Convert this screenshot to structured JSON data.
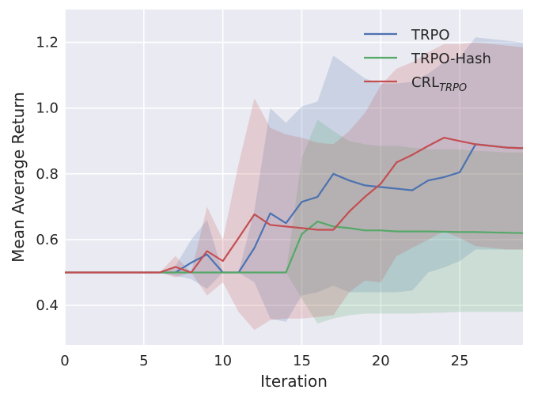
{
  "chart_data": {
    "type": "line",
    "xlabel": "Iteration",
    "ylabel": "Mean Average Return",
    "xlim": [
      0,
      29
    ],
    "ylim": [
      0.28,
      1.3
    ],
    "xticks": [
      0,
      5,
      10,
      15,
      20,
      25
    ],
    "yticks": [
      0.4,
      0.6,
      0.8,
      1.0,
      1.2
    ],
    "xtick_labels": [
      "0",
      "5",
      "10",
      "15",
      "20",
      "25"
    ],
    "ytick_labels": [
      "0.4",
      "0.6",
      "0.8",
      "1.0",
      "1.2"
    ],
    "grid": true,
    "background": "#eaeaf2",
    "legend_position": "top-right",
    "x": [
      0,
      1,
      2,
      3,
      4,
      5,
      6,
      7,
      8,
      9,
      10,
      11,
      12,
      13,
      14,
      15,
      16,
      17,
      18,
      19,
      20,
      21,
      22,
      23,
      24,
      25,
      26,
      27,
      28,
      29
    ],
    "series": [
      {
        "name": "TRPO",
        "color": "#4c72b0",
        "values": [
          0.5,
          0.5,
          0.5,
          0.5,
          0.5,
          0.5,
          0.5,
          0.5,
          0.53,
          0.555,
          0.5,
          0.5,
          0.575,
          0.68,
          0.65,
          0.715,
          0.73,
          0.8,
          0.78,
          0.765,
          0.76,
          0.755,
          0.75,
          0.78,
          0.79,
          0.805,
          0.89,
          0.885,
          0.88,
          0.878
        ],
        "band_upper": [
          0.5,
          0.5,
          0.5,
          0.5,
          0.5,
          0.5,
          0.5,
          0.52,
          0.6,
          0.66,
          0.5,
          0.5,
          0.69,
          1.0,
          0.955,
          1.005,
          1.02,
          1.16,
          1.125,
          1.09,
          1.075,
          1.075,
          1.08,
          1.105,
          1.14,
          1.155,
          1.215,
          1.21,
          1.205,
          1.2
        ],
        "band_lower": [
          0.5,
          0.5,
          0.5,
          0.5,
          0.5,
          0.5,
          0.5,
          0.49,
          0.48,
          0.45,
          0.5,
          0.5,
          0.47,
          0.36,
          0.35,
          0.43,
          0.44,
          0.46,
          0.44,
          0.44,
          0.44,
          0.44,
          0.445,
          0.5,
          0.515,
          0.535,
          0.57,
          0.57,
          0.57,
          0.57
        ]
      },
      {
        "name": "TRPO-Hash",
        "color": "#55a868",
        "values": [
          0.5,
          0.5,
          0.5,
          0.5,
          0.5,
          0.5,
          0.5,
          0.5,
          0.5,
          0.5,
          0.5,
          0.5,
          0.5,
          0.5,
          0.5,
          0.617,
          0.655,
          0.64,
          0.635,
          0.628,
          0.628,
          0.625,
          0.625,
          0.625,
          0.624,
          0.623,
          0.623,
          0.622,
          0.621,
          0.62
        ],
        "band_upper": [
          0.5,
          0.5,
          0.5,
          0.5,
          0.5,
          0.5,
          0.5,
          0.5,
          0.5,
          0.5,
          0.5,
          0.5,
          0.5,
          0.5,
          0.5,
          0.85,
          0.965,
          0.93,
          0.9,
          0.89,
          0.885,
          0.885,
          0.88,
          0.875,
          0.875,
          0.875,
          0.87,
          0.868,
          0.865,
          0.865
        ],
        "band_lower": [
          0.5,
          0.5,
          0.5,
          0.5,
          0.5,
          0.5,
          0.5,
          0.5,
          0.5,
          0.5,
          0.5,
          0.5,
          0.5,
          0.5,
          0.5,
          0.42,
          0.345,
          0.36,
          0.37,
          0.375,
          0.375,
          0.375,
          0.375,
          0.377,
          0.378,
          0.38,
          0.38,
          0.38,
          0.38,
          0.38
        ]
      },
      {
        "name": "CRL",
        "name_sub": "TRPO",
        "color": "#c44e52",
        "values": [
          0.5,
          0.5,
          0.5,
          0.5,
          0.5,
          0.5,
          0.5,
          0.517,
          0.5,
          0.565,
          0.535,
          0.605,
          0.677,
          0.645,
          0.64,
          0.635,
          0.63,
          0.63,
          0.685,
          0.73,
          0.77,
          0.835,
          0.858,
          0.885,
          0.91,
          0.9,
          0.89,
          0.885,
          0.88,
          0.878
        ],
        "band_upper": [
          0.5,
          0.5,
          0.5,
          0.5,
          0.5,
          0.5,
          0.5,
          0.55,
          0.5,
          0.7,
          0.6,
          0.83,
          1.03,
          0.94,
          0.92,
          0.91,
          0.895,
          0.89,
          0.93,
          0.985,
          1.07,
          1.12,
          1.14,
          1.17,
          1.195,
          1.195,
          1.2,
          1.195,
          1.19,
          1.185
        ],
        "band_lower": [
          0.5,
          0.5,
          0.5,
          0.5,
          0.5,
          0.5,
          0.5,
          0.485,
          0.5,
          0.43,
          0.47,
          0.38,
          0.325,
          0.355,
          0.36,
          0.36,
          0.365,
          0.37,
          0.44,
          0.475,
          0.47,
          0.55,
          0.575,
          0.6,
          0.625,
          0.605,
          0.58,
          0.575,
          0.57,
          0.57
        ]
      }
    ]
  }
}
